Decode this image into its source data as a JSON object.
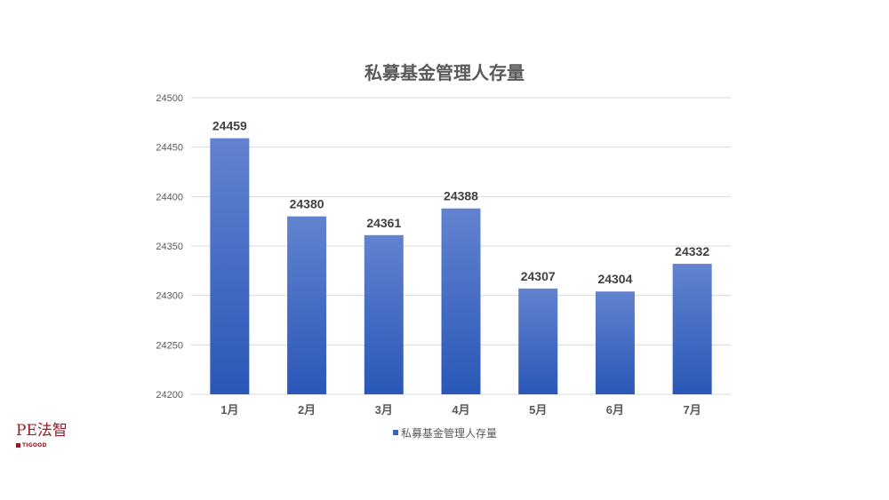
{
  "chart_data": {
    "type": "bar",
    "title": "私募基金管理人存量",
    "categories": [
      "1月",
      "2月",
      "3月",
      "4月",
      "5月",
      "6月",
      "7月"
    ],
    "series": [
      {
        "name": "私募基金管理人存量",
        "values": [
          24459,
          24380,
          24361,
          24388,
          24307,
          24304,
          24332
        ]
      }
    ],
    "data_labels": true,
    "ylim": [
      24200,
      24500
    ],
    "yticks": [
      24200,
      24250,
      24300,
      24350,
      24400,
      24450,
      24500
    ],
    "grid": true,
    "legend": "bottom",
    "colors": {
      "bar_top": "#6283cf",
      "bar_bottom": "#2a57b8",
      "grid": "#d9d9d9",
      "text": "#595959"
    }
  },
  "logo": {
    "main": "PE法智",
    "sub": "TIGOOD"
  }
}
